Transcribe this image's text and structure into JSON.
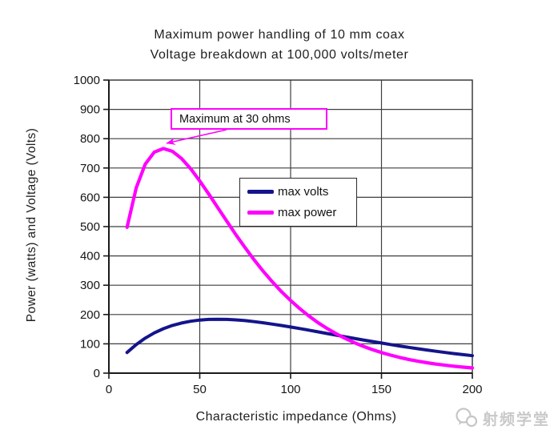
{
  "chart_data": {
    "type": "line",
    "title_lines": [
      "Maximum power handling of 10 mm coax",
      "Voltage breakdown at 100,000 volts/meter"
    ],
    "xlabel": "Characteristic impedance (Ohms)",
    "ylabel": "Power (watts) and Voltage (Volts)",
    "xlim": [
      0,
      200
    ],
    "ylim": [
      0,
      1000
    ],
    "xticks": [
      0,
      50,
      100,
      150,
      200
    ],
    "yticks": [
      0,
      100,
      200,
      300,
      400,
      500,
      600,
      700,
      800,
      900,
      1000
    ],
    "grid": true,
    "legend": {
      "position": "inside-center",
      "border_color": "#2b2b2b",
      "background": "#ffffff"
    },
    "x": [
      10,
      15,
      20,
      25,
      30,
      35,
      40,
      45,
      50,
      55,
      60,
      65,
      70,
      75,
      80,
      85,
      90,
      95,
      100,
      105,
      110,
      115,
      120,
      125,
      130,
      135,
      140,
      145,
      150,
      155,
      160,
      165,
      170,
      175,
      180,
      185,
      190,
      195,
      200
    ],
    "series": [
      {
        "name": "max volts",
        "color": "#14148C",
        "values": [
          70.5,
          97.4,
          119.4,
          137.3,
          151.6,
          162.8,
          171.1,
          177.1,
          181.1,
          183.3,
          183.9,
          183.3,
          181.7,
          179.1,
          175.7,
          171.8,
          167.3,
          162.5,
          157.4,
          152.1,
          146.6,
          141.0,
          135.3,
          129.7,
          124.1,
          118.6,
          113.1,
          107.8,
          102.6,
          97.6,
          92.6,
          87.9,
          83.3,
          78.9,
          74.7,
          70.6,
          66.7,
          63.0,
          59.5
        ]
      },
      {
        "name": "max power",
        "color": "#FF00FF",
        "values": [
          497.6,
          631.8,
          713.1,
          754.5,
          766.4,
          756.9,
          732.2,
          697.3,
          655.8,
          610.7,
          563.9,
          517.1,
          471.4,
          427.5,
          386.0,
          347.2,
          311.2,
          278.0,
          247.7,
          220.2,
          195.3,
          172.8,
          152.6,
          134.6,
          118.5,
          104.1,
          91.4,
          80.2,
          70.2,
          61.4,
          53.6,
          46.8,
          40.8,
          35.6,
          31.0,
          27.0,
          23.4,
          20.4,
          17.7
        ]
      }
    ],
    "annotation": {
      "text": "Maximum at 30 ohms",
      "target_x": 30,
      "target_y": 790,
      "border_color": "#FF00FF"
    }
  },
  "watermark": {
    "text": "射频学堂",
    "color": "#c9c9c9"
  }
}
